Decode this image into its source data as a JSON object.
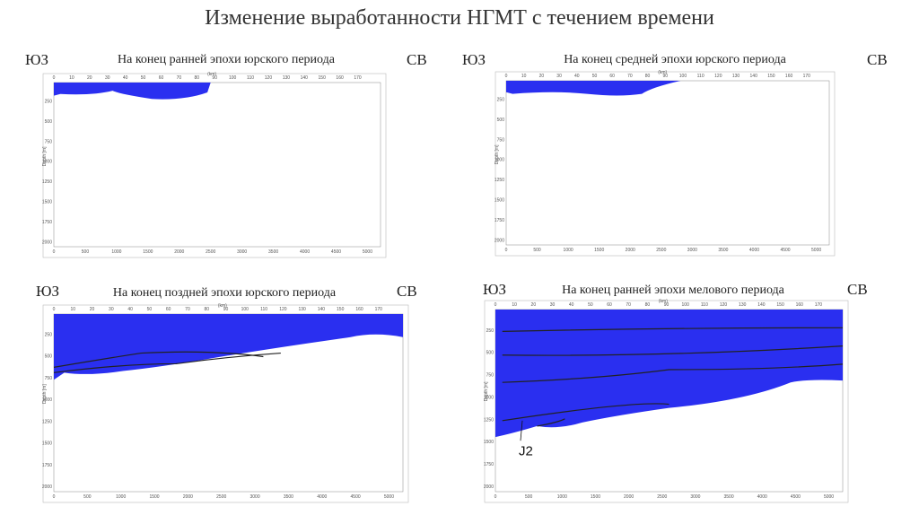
{
  "title": "Изменение выработанности НГМТ с течением времени",
  "panels": [
    {
      "left_label": "ЮЗ",
      "right_label": "СВ",
      "caption": "На конец ранней эпохи юрского периода",
      "top_axis": {
        "label": "(km)",
        "ticks": [
          "0",
          "10",
          "20",
          "30",
          "40",
          "50",
          "60",
          "70",
          "80",
          "90",
          "100",
          "110",
          "120",
          "130",
          "140",
          "150",
          "160",
          "170"
        ]
      },
      "depth_axis": {
        "label": "Depth [m]",
        "ticks": [
          "250",
          "500",
          "750",
          "1000",
          "1250",
          "1500",
          "1750",
          "2000"
        ]
      },
      "bottom_ticks": [
        "0",
        "500",
        "1000",
        "1500",
        "2000",
        "2500",
        "3000",
        "3500",
        "4000",
        "4500",
        "5000"
      ]
    },
    {
      "left_label": "ЮЗ",
      "right_label": "СВ",
      "caption": "На конец средней эпохи юрского периода",
      "top_axis": {
        "label": "(km)",
        "ticks": [
          "0",
          "10",
          "20",
          "30",
          "40",
          "50",
          "60",
          "70",
          "80",
          "90",
          "100",
          "110",
          "120",
          "130",
          "140",
          "150",
          "160",
          "170"
        ]
      },
      "depth_axis": {
        "label": "Depth [m]",
        "ticks": [
          "250",
          "500",
          "750",
          "1000",
          "1250",
          "1500",
          "1750",
          "2000"
        ]
      },
      "bottom_ticks": [
        "0",
        "500",
        "1000",
        "1500",
        "2000",
        "2500",
        "3000",
        "3500",
        "4000",
        "4500",
        "5000"
      ]
    },
    {
      "left_label": "ЮЗ",
      "right_label": "СВ",
      "caption": "На конец поздней эпохи юрского периода",
      "top_axis": {
        "label": "(km)",
        "ticks": [
          "0",
          "10",
          "20",
          "30",
          "40",
          "50",
          "60",
          "70",
          "80",
          "90",
          "100",
          "110",
          "120",
          "130",
          "140",
          "150",
          "160",
          "170"
        ]
      },
      "depth_axis": {
        "label": "Depth [m]",
        "ticks": [
          "250",
          "500",
          "750",
          "1000",
          "1250",
          "1500",
          "1750",
          "2000"
        ]
      },
      "bottom_ticks": [
        "0",
        "500",
        "1000",
        "1500",
        "2000",
        "2500",
        "3000",
        "3500",
        "4000",
        "4500",
        "5000"
      ]
    },
    {
      "left_label": "ЮЗ",
      "right_label": "СВ",
      "caption": "На конец ранней эпохи мелового периода",
      "top_axis": {
        "label": "(km)",
        "ticks": [
          "0",
          "10",
          "20",
          "30",
          "40",
          "50",
          "60",
          "70",
          "80",
          "90",
          "100",
          "110",
          "120",
          "130",
          "140",
          "150",
          "160",
          "170"
        ]
      },
      "depth_axis": {
        "label": "Depth [m]",
        "ticks": [
          "250",
          "500",
          "750",
          "1000",
          "1250",
          "1500",
          "1750",
          "2000"
        ]
      },
      "bottom_ticks": [
        "0",
        "500",
        "1000",
        "1500",
        "2000",
        "2500",
        "3000",
        "3500",
        "4000",
        "4500",
        "5000"
      ],
      "annotation": "J2"
    }
  ]
}
